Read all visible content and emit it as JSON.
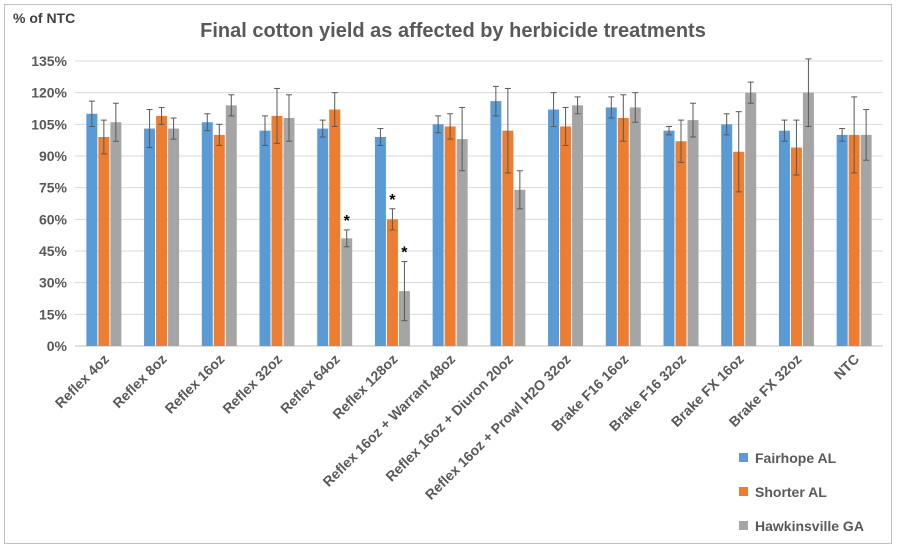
{
  "chart_data": {
    "type": "bar",
    "title": "Final cotton yield as affected by herbicide treatments",
    "ylabel": "% of NTC",
    "xlabel": "",
    "ylim": [
      0,
      135
    ],
    "yticks": [
      "0%",
      "15%",
      "30%",
      "45%",
      "60%",
      "75%",
      "90%",
      "105%",
      "120%",
      "135%"
    ],
    "ytick_values": [
      0,
      15,
      30,
      45,
      60,
      75,
      90,
      105,
      120,
      135
    ],
    "grid": true,
    "legend_position": "bottom-right",
    "categories": [
      "Reflex 4oz",
      "Reflex 8oz",
      "Reflex 16oz",
      "Reflex 32oz",
      "Reflex 64oz",
      "Reflex 128oz",
      "Reflex 16oz + Warrant 48oz",
      "Reflex 16oz + Diuron 20oz",
      "Reflex 16oz + Prowl H2O 32oz",
      "Brake F16 16oz",
      "Brake F16 32oz",
      "Brake FX 16oz",
      "Brake FX 32oz",
      "NTC"
    ],
    "series": [
      {
        "name": "Fairhope AL",
        "color": "#5b9bd5",
        "values": [
          110,
          103,
          106,
          102,
          103,
          99,
          105,
          116,
          112,
          113,
          102,
          105,
          102,
          100
        ],
        "errors": [
          6,
          9,
          4,
          7,
          4,
          4,
          4,
          7,
          8,
          5,
          2,
          5,
          5,
          3
        ]
      },
      {
        "name": "Shorter AL",
        "color": "#ed7d31",
        "values": [
          99,
          109,
          100,
          109,
          112,
          60,
          104,
          102,
          104,
          108,
          97,
          92,
          94,
          100
        ],
        "errors": [
          8,
          4,
          5,
          13,
          8,
          5,
          6,
          20,
          9,
          11,
          10,
          19,
          13,
          18
        ]
      },
      {
        "name": "Hawkinsville GA",
        "color": "#a5a5a5",
        "values": [
          106,
          103,
          114,
          108,
          51,
          26,
          98,
          74,
          114,
          113,
          107,
          120,
          120,
          100
        ],
        "errors": [
          9,
          5,
          5,
          11,
          4,
          14,
          15,
          9,
          4,
          7,
          8,
          5,
          16,
          12
        ]
      }
    ],
    "annotations": [
      {
        "text": "*",
        "category_index": 4,
        "series_index": 2
      },
      {
        "text": "*",
        "category_index": 5,
        "series_index": 1
      },
      {
        "text": "*",
        "category_index": 5,
        "series_index": 2
      }
    ]
  }
}
